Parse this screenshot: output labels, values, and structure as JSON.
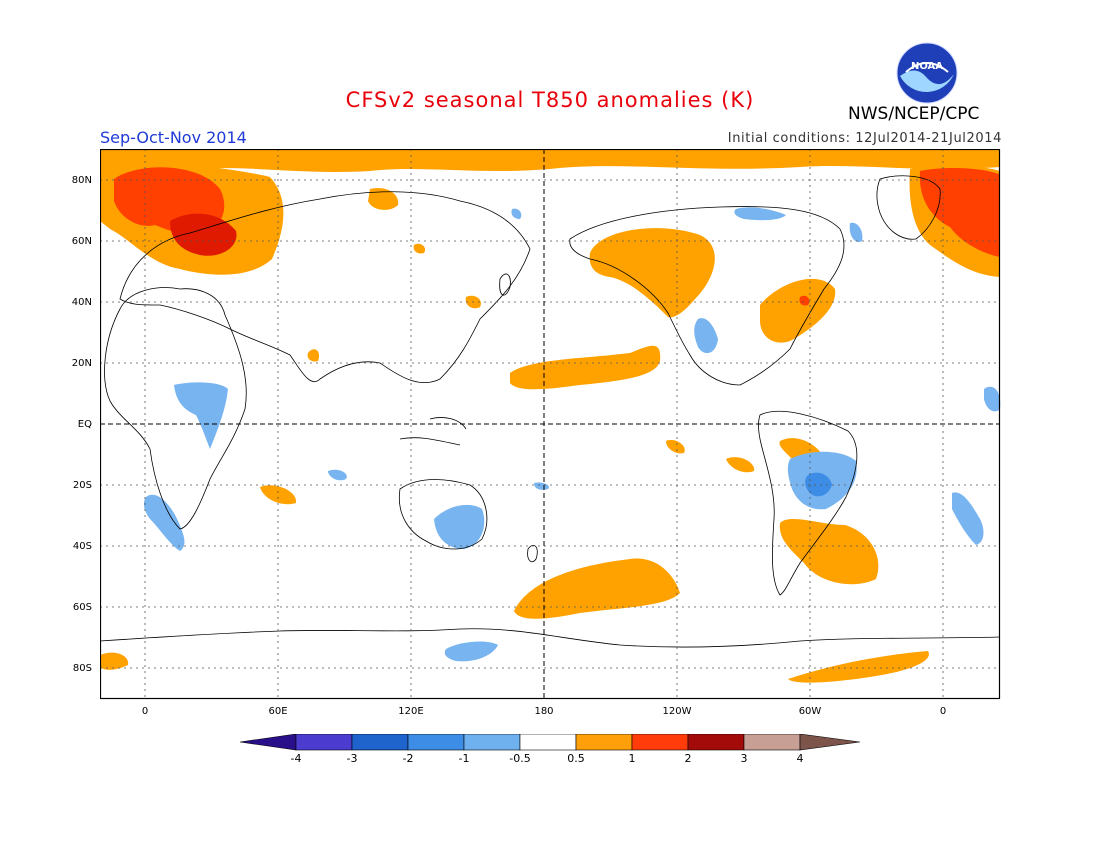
{
  "title": "CFSv2 seasonal T850 anomalies (K)",
  "season": "Sep-Oct-Nov 2014",
  "initial_conditions": "Initial conditions: 12Jul2014-21Jul2014",
  "organization": "NWS/NCEP/CPC",
  "logo_text": "NOAA",
  "lat_labels": [
    "80N",
    "60N",
    "40N",
    "20N",
    "EQ",
    "20S",
    "40S",
    "60S",
    "80S"
  ],
  "lon_labels": [
    "0",
    "60E",
    "120E",
    "180",
    "120W",
    "60W",
    "0"
  ],
  "colorbar": {
    "labels": [
      "-4",
      "-3",
      "-2",
      "-1",
      "-0.5",
      "0.5",
      "1",
      "2",
      "3",
      "4"
    ],
    "colors": [
      "#2a0f8a",
      "#4b3ccf",
      "#1f63cc",
      "#3d8ce6",
      "#6fb0ef",
      "#ffffff",
      "#ff9f0a",
      "#ff3c0a",
      "#a30b0b",
      "#c79f94",
      "#7c5449"
    ]
  },
  "colors": {
    "warm1": "#ffa200",
    "warm2": "#ff4000",
    "warm3": "#e01a00",
    "cool1": "#78b4f0",
    "cool2": "#3d8ce6"
  }
}
